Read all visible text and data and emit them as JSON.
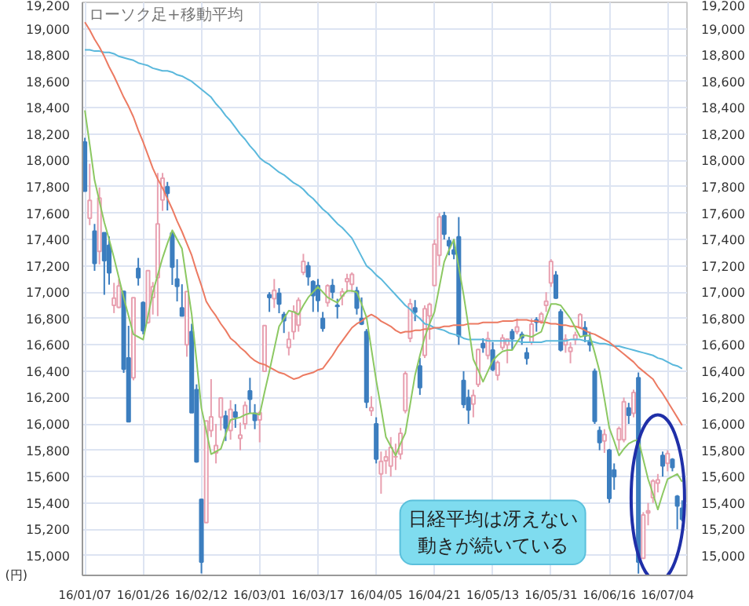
{
  "chart_data": {
    "type": "candlestick",
    "title": "ローソク足+移動平均",
    "ylabel": "(円)",
    "categories": [
      "16/01/07",
      null,
      null,
      null,
      null,
      null,
      null,
      null,
      null,
      null,
      null,
      null,
      "16/01/26",
      null,
      null,
      null,
      null,
      null,
      null,
      null,
      null,
      null,
      null,
      null,
      "16/02/12",
      null,
      null,
      null,
      null,
      null,
      null,
      null,
      null,
      null,
      null,
      null,
      "16/03/01",
      null,
      null,
      null,
      null,
      null,
      null,
      null,
      null,
      null,
      null,
      null,
      "16/03/17",
      null,
      null,
      null,
      null,
      null,
      null,
      null,
      null,
      null,
      null,
      null,
      "16/04/05",
      null,
      null,
      null,
      null,
      null,
      null,
      null,
      null,
      null,
      null,
      null,
      "16/04/21",
      null,
      null,
      null,
      null,
      null,
      null,
      null,
      null,
      null,
      null,
      null,
      "16/05/13",
      null,
      null,
      null,
      null,
      null,
      null,
      null,
      null,
      null,
      null,
      null,
      "16/05/31",
      null,
      null,
      null,
      null,
      null,
      null,
      null,
      null,
      null,
      null,
      null,
      "16/06/16",
      null,
      null,
      null,
      null,
      null,
      null,
      null,
      null,
      null,
      null,
      null,
      "16/07/04",
      null,
      null,
      null
    ],
    "ohlc": [
      [
        18139,
        18172,
        17767,
        17767
      ],
      [
        17562,
        17975,
        17509,
        17697
      ],
      [
        17463,
        17518,
        17162,
        17219
      ],
      [
        17310,
        17795,
        17211,
        17715
      ],
      [
        17451,
        17451,
        16980,
        17240
      ],
      [
        17355,
        17423,
        17057,
        17147
      ],
      [
        16900,
        17071,
        16841,
        16955
      ],
      [
        16885,
        17100,
        16878,
        17048
      ],
      [
        17005,
        17009,
        16387,
        16416
      ],
      [
        16500,
        16745,
        16017,
        16017
      ],
      [
        16350,
        16958,
        16331,
        16958
      ],
      [
        17180,
        17260,
        17050,
        17110
      ],
      [
        16920,
        16930,
        16680,
        16708
      ],
      [
        16770,
        17163,
        16760,
        17163
      ],
      [
        16960,
        17077,
        16830,
        17041
      ],
      [
        17110,
        17905,
        16818,
        17518
      ],
      [
        17700,
        17905,
        17617,
        17865
      ],
      [
        17800,
        17837,
        17620,
        17750
      ],
      [
        17450,
        17450,
        17055,
        17191
      ],
      [
        17100,
        17250,
        16930,
        17044
      ],
      [
        16880,
        17060,
        16819,
        16819
      ],
      [
        16600,
        17004,
        16510,
        17004
      ],
      [
        16700,
        16760,
        16085,
        16085
      ],
      [
        16260,
        16300,
        15706,
        15713
      ],
      [
        15427,
        15430,
        14865,
        14952
      ],
      [
        15250,
        16022,
        15250,
        16022
      ],
      [
        15950,
        16340,
        15900,
        16054
      ],
      [
        15780,
        16000,
        15700,
        15836
      ],
      [
        16050,
        16200,
        15950,
        16196
      ],
      [
        16060,
        16100,
        15870,
        15967
      ],
      [
        15950,
        16180,
        15880,
        16111
      ],
      [
        16090,
        16150,
        15970,
        16052
      ],
      [
        15890,
        16010,
        15800,
        15915
      ],
      [
        16000,
        16170,
        15960,
        16140
      ],
      [
        16250,
        16350,
        16080,
        16188
      ],
      [
        16080,
        16150,
        15960,
        16027
      ],
      [
        16030,
        16100,
        15860,
        16085
      ],
      [
        16400,
        16751,
        16400,
        16747
      ],
      [
        16980,
        17000,
        16850,
        16960
      ],
      [
        16950,
        17100,
        16880,
        17015
      ],
      [
        16990,
        17030,
        16840,
        16911
      ],
      [
        16830,
        16850,
        16690,
        16784
      ],
      [
        16580,
        16700,
        16520,
        16642
      ],
      [
        16700,
        16900,
        16640,
        16852
      ],
      [
        16750,
        16960,
        16700,
        16939
      ],
      [
        17150,
        17291,
        17130,
        17233
      ],
      [
        17200,
        17230,
        17050,
        17117
      ],
      [
        17080,
        17090,
        16850,
        16974
      ],
      [
        17050,
        17100,
        16850,
        16937
      ],
      [
        16800,
        16850,
        16700,
        16725
      ],
      [
        16920,
        17060,
        16890,
        17049
      ],
      [
        17050,
        17100,
        16950,
        17001
      ],
      [
        16900,
        16950,
        16800,
        16893
      ],
      [
        16970,
        17030,
        16900,
        17003
      ],
      [
        17080,
        17140,
        17000,
        17103
      ],
      [
        17060,
        17150,
        17000,
        17135
      ],
      [
        17010,
        17040,
        16830,
        16879
      ],
      [
        16800,
        16960,
        16750,
        16759
      ],
      [
        16700,
        16720,
        16120,
        16165
      ],
      [
        16100,
        16210,
        16060,
        16123
      ],
      [
        16000,
        16050,
        15700,
        15733
      ],
      [
        15620,
        15790,
        15470,
        15716
      ],
      [
        15720,
        15800,
        15620,
        15750
      ],
      [
        15680,
        15900,
        15600,
        15822
      ],
      [
        15750,
        15850,
        15650,
        15752
      ],
      [
        15770,
        15970,
        15730,
        15929
      ],
      [
        16100,
        16400,
        16080,
        16381
      ],
      [
        16650,
        16950,
        16620,
        16912
      ],
      [
        16880,
        16940,
        16780,
        16849
      ],
      [
        16440,
        16500,
        16220,
        16276
      ],
      [
        16520,
        16900,
        16500,
        16874
      ],
      [
        16820,
        16920,
        16640,
        16907
      ],
      [
        17050,
        17400,
        17050,
        17364
      ],
      [
        17280,
        17600,
        17200,
        17572
      ],
      [
        17580,
        17610,
        17400,
        17440
      ],
      [
        17390,
        17420,
        17280,
        17353
      ],
      [
        17320,
        17400,
        17250,
        17290
      ],
      [
        17420,
        17570,
        16600,
        16666
      ],
      [
        16330,
        16400,
        16120,
        16147
      ],
      [
        16200,
        16260,
        16000,
        16106
      ],
      [
        16150,
        16260,
        16050,
        16216
      ],
      [
        16300,
        16570,
        16280,
        16565
      ],
      [
        16610,
        16650,
        16540,
        16579
      ],
      [
        16520,
        16700,
        16490,
        16647
      ],
      [
        16560,
        16620,
        16400,
        16412
      ],
      [
        16370,
        16480,
        16330,
        16466
      ],
      [
        16580,
        16680,
        16560,
        16652
      ],
      [
        16600,
        16650,
        16460,
        16644
      ],
      [
        16700,
        16720,
        16560,
        16646
      ],
      [
        16700,
        16800,
        16680,
        16736
      ],
      [
        16680,
        16700,
        16600,
        16654
      ],
      [
        16540,
        16580,
        16450,
        16498
      ],
      [
        16620,
        16800,
        16600,
        16757
      ],
      [
        16790,
        16810,
        16700,
        16772
      ],
      [
        16780,
        16850,
        16760,
        16834
      ],
      [
        16900,
        17000,
        16850,
        16931
      ],
      [
        17070,
        17250,
        17040,
        17234
      ],
      [
        17130,
        17160,
        16950,
        16955
      ],
      [
        16850,
        16870,
        16550,
        16562
      ],
      [
        16600,
        16680,
        16540,
        16642
      ],
      [
        16550,
        16620,
        16460,
        16580
      ],
      [
        16640,
        16700,
        16600,
        16675
      ],
      [
        16730,
        16840,
        16720,
        16830
      ],
      [
        16730,
        16780,
        16620,
        16668
      ],
      [
        16630,
        16700,
        16550,
        16601
      ],
      [
        16400,
        16420,
        16000,
        16019
      ],
      [
        15950,
        15980,
        15800,
        15859
      ],
      [
        15870,
        15960,
        15780,
        15919
      ],
      [
        15800,
        15810,
        15400,
        15434
      ],
      [
        15650,
        15700,
        15500,
        15599
      ],
      [
        15880,
        15980,
        15800,
        15965
      ],
      [
        15880,
        16200,
        15860,
        16169
      ],
      [
        16120,
        16160,
        16000,
        16065
      ],
      [
        16080,
        16260,
        16050,
        16238
      ],
      [
        16350,
        16390,
        14864,
        14952
      ],
      [
        14980,
        15330,
        14980,
        15309
      ],
      [
        15340,
        15400,
        15230,
        15323
      ],
      [
        15440,
        15580,
        15400,
        15566
      ],
      [
        15550,
        15620,
        15480,
        15575
      ],
      [
        15760,
        15790,
        15600,
        15682
      ],
      [
        15700,
        15800,
        15640,
        15775
      ],
      [
        15730,
        15740,
        15640,
        15669
      ],
      [
        15450,
        15460,
        15200,
        15378
      ],
      [
        15360,
        15420,
        15260,
        15276
      ]
    ],
    "colors": [
      "#3c7ebf",
      "#e8a0b0",
      "#3c7ebf",
      "#e8a0b0",
      "#3c7ebf",
      "#3c7ebf",
      "#e8a0b0",
      "#e8a0b0",
      "#3c7ebf",
      "#3c7ebf",
      "#e8a0b0",
      "#3c7ebf",
      "#3c7ebf",
      "#e8a0b0",
      "#e8a0b0",
      "#e8a0b0",
      "#e8a0b0",
      "#3c7ebf",
      "#3c7ebf",
      "#3c7ebf",
      "#3c7ebf",
      "#e8a0b0",
      "#3c7ebf",
      "#3c7ebf",
      "#3c7ebf",
      "#e8a0b0",
      "#e8a0b0",
      "#e8a0b0",
      "#e8a0b0",
      "#3c7ebf",
      "#e8a0b0",
      "#3c7ebf",
      "#e8a0b0",
      "#e8a0b0",
      "#3c7ebf",
      "#3c7ebf",
      "#e8a0b0",
      "#e8a0b0",
      "#3c7ebf",
      "#e8a0b0",
      "#3c7ebf",
      "#3c7ebf",
      "#e8a0b0",
      "#e8a0b0",
      "#e8a0b0",
      "#e8a0b0",
      "#3c7ebf",
      "#3c7ebf",
      "#3c7ebf",
      "#3c7ebf",
      "#e8a0b0",
      "#3c7ebf",
      "#3c7ebf",
      "#e8a0b0",
      "#e8a0b0",
      "#e8a0b0",
      "#3c7ebf",
      "#3c7ebf",
      "#3c7ebf",
      "#e8a0b0",
      "#3c7ebf",
      "#e8a0b0",
      "#e8a0b0",
      "#e8a0b0",
      "#e8a0b0",
      "#e8a0b0",
      "#e8a0b0",
      "#e8a0b0",
      "#3c7ebf",
      "#3c7ebf",
      "#e8a0b0",
      "#e8a0b0",
      "#e8a0b0",
      "#e8a0b0",
      "#3c7ebf",
      "#3c7ebf",
      "#3c7ebf",
      "#3c7ebf",
      "#3c7ebf",
      "#3c7ebf",
      "#e8a0b0",
      "#e8a0b0",
      "#3c7ebf",
      "#e8a0b0",
      "#3c7ebf",
      "#e8a0b0",
      "#e8a0b0",
      "#e8a0b0",
      "#3c7ebf",
      "#e8a0b0",
      "#3c7ebf",
      "#3c7ebf",
      "#e8a0b0",
      "#3c7ebf",
      "#e8a0b0",
      "#e8a0b0",
      "#e8a0b0",
      "#3c7ebf",
      "#3c7ebf",
      "#e8a0b0",
      "#e8a0b0",
      "#e8a0b0",
      "#e8a0b0",
      "#3c7ebf",
      "#3c7ebf",
      "#3c7ebf",
      "#3c7ebf",
      "#e8a0b0",
      "#3c7ebf",
      "#3c7ebf",
      "#e8a0b0",
      "#e8a0b0",
      "#3c7ebf",
      "#e8a0b0",
      "#3c7ebf",
      "#e8a0b0",
      "#e8a0b0",
      "#e8a0b0",
      "#e8a0b0",
      "#3c7ebf",
      "#e8a0b0",
      "#3c7ebf",
      "#3c7ebf",
      "#3c7ebf"
    ],
    "series": [
      {
        "type": "line",
        "color": "#5ab8dc",
        "values": [
          18840,
          18840,
          18830,
          18830,
          18820,
          18820,
          18810,
          18790,
          18780,
          18770,
          18760,
          18740,
          18730,
          18720,
          18700,
          18690,
          18680,
          18680,
          18670,
          18650,
          18640,
          18620,
          18600,
          18570,
          18540,
          18510,
          18480,
          18430,
          18390,
          18340,
          18300,
          18250,
          18200,
          18160,
          18110,
          18070,
          18020,
          17990,
          17970,
          17940,
          17910,
          17890,
          17860,
          17830,
          17810,
          17780,
          17740,
          17710,
          17670,
          17630,
          17600,
          17560,
          17520,
          17490,
          17450,
          17410,
          17340,
          17270,
          17200,
          17170,
          17130,
          17100,
          17060,
          17020,
          16980,
          16940,
          16900,
          16870,
          16830,
          16800,
          16760,
          16750,
          16730,
          16720,
          16710,
          16690,
          16680,
          16670,
          16650,
          16640,
          16640,
          16640,
          16640,
          16630,
          16630,
          16630,
          16630,
          16630,
          16630,
          16630,
          16620,
          16620,
          16620,
          16620,
          16620,
          16630,
          16630,
          16630,
          16630,
          16630,
          16640,
          16640,
          16640,
          16630,
          16630,
          16620,
          16610,
          16610,
          16600,
          16590,
          16590,
          16580,
          16570,
          16560,
          16550,
          16540,
          16530,
          16520,
          16500,
          16490,
          16470,
          16450,
          16440,
          16420
        ]
      },
      {
        "type": "line",
        "color": "#ec7a62",
        "values": [
          19050,
          18990,
          18920,
          18860,
          18790,
          18710,
          18640,
          18560,
          18480,
          18410,
          18330,
          18230,
          18140,
          18040,
          17940,
          17860,
          17790,
          17710,
          17630,
          17540,
          17460,
          17370,
          17280,
          17160,
          17050,
          16930,
          16870,
          16820,
          16760,
          16710,
          16650,
          16620,
          16580,
          16550,
          16510,
          16480,
          16460,
          16450,
          16430,
          16410,
          16390,
          16380,
          16360,
          16340,
          16350,
          16370,
          16380,
          16390,
          16410,
          16420,
          16470,
          16520,
          16580,
          16630,
          16680,
          16730,
          16760,
          16780,
          16810,
          16830,
          16810,
          16780,
          16760,
          16740,
          16710,
          16690,
          16700,
          16700,
          16710,
          16710,
          16720,
          16720,
          16730,
          16730,
          16740,
          16740,
          16750,
          16750,
          16750,
          16760,
          16760,
          16760,
          16770,
          16770,
          16770,
          16770,
          16780,
          16780,
          16780,
          16790,
          16790,
          16790,
          16780,
          16780,
          16770,
          16770,
          16760,
          16760,
          16750,
          16750,
          16740,
          16740,
          16730,
          16710,
          16690,
          16680,
          16660,
          16640,
          16620,
          16590,
          16560,
          16530,
          16500,
          16470,
          16430,
          16400,
          16370,
          16340,
          16280,
          16230,
          16170,
          16110,
          16050,
          15990
        ]
      },
      {
        "type": "line",
        "color": "#8cc862",
        "values": [
          18380,
          18120,
          17850,
          17690,
          17530,
          17400,
          17260,
          17110,
          16960,
          16820,
          16680,
          16660,
          16640,
          16820,
          17000,
          17130,
          17260,
          17370,
          17470,
          17400,
          17330,
          17080,
          16830,
          16480,
          16120,
          15950,
          15770,
          15790,
          15810,
          15920,
          16030,
          16040,
          16050,
          16070,
          16080,
          16080,
          16070,
          16240,
          16400,
          16570,
          16740,
          16800,
          16860,
          16850,
          16830,
          16900,
          16960,
          17000,
          17040,
          17000,
          16960,
          16940,
          16920,
          16970,
          17010,
          17010,
          17000,
          16910,
          16810,
          16570,
          16330,
          16120,
          15900,
          15830,
          15760,
          15850,
          15930,
          16150,
          16370,
          16520,
          16660,
          16760,
          16850,
          17040,
          17230,
          17320,
          17400,
          17190,
          16980,
          16740,
          16490,
          16410,
          16320,
          16400,
          16480,
          16520,
          16550,
          16560,
          16560,
          16620,
          16670,
          16670,
          16660,
          16680,
          16700,
          16810,
          16910,
          16910,
          16900,
          16850,
          16800,
          16730,
          16660,
          16670,
          16670,
          16540,
          16400,
          16190,
          15970,
          15870,
          15760,
          15810,
          15850,
          15870,
          15880,
          15730,
          15580,
          15470,
          15350,
          15470,
          15580,
          15600,
          15620,
          15560
        ]
      }
    ],
    "ylim": [
      14850,
      19200
    ],
    "yticks": [
      {
        "value": 15000,
        "label": "15,000"
      },
      {
        "value": 15200,
        "label": "15,200"
      },
      {
        "value": 15400,
        "label": "15,400"
      },
      {
        "value": 15600,
        "label": "15,600"
      },
      {
        "value": 15800,
        "label": "15,800"
      },
      {
        "value": 16000,
        "label": "16,000"
      },
      {
        "value": 16200,
        "label": "16,200"
      },
      {
        "value": 16400,
        "label": "16,400"
      },
      {
        "value": 16600,
        "label": "16,600"
      },
      {
        "value": 16800,
        "label": "16,800"
      },
      {
        "value": 17000,
        "label": "17,000"
      },
      {
        "value": 17200,
        "label": "17,200"
      },
      {
        "value": 17400,
        "label": "17,400"
      },
      {
        "value": 17600,
        "label": "17,600"
      },
      {
        "value": 17800,
        "label": "17,800"
      },
      {
        "value": 18000,
        "label": "18,000"
      },
      {
        "value": 18200,
        "label": "18,200"
      },
      {
        "value": 18400,
        "label": "18,400"
      },
      {
        "value": 18600,
        "label": "18,600"
      },
      {
        "value": 18800,
        "label": "18,800"
      },
      {
        "value": 19000,
        "label": "19,000"
      },
      {
        "value": 19200,
        "label": "19,200"
      }
    ],
    "y2lim": [
      14850,
      19200
    ],
    "y2ticks": [
      {
        "value": 15000,
        "label": "15,000"
      },
      {
        "value": 15200,
        "label": "15,200"
      },
      {
        "value": 15400,
        "label": "15,400"
      },
      {
        "value": 15600,
        "label": "15,600"
      },
      {
        "value": 15800,
        "label": "15,800"
      },
      {
        "value": 16000,
        "label": "16,000"
      },
      {
        "value": 16200,
        "label": "16,200"
      },
      {
        "value": 16400,
        "label": "16,400"
      },
      {
        "value": 16600,
        "label": "16,600"
      },
      {
        "value": 16800,
        "label": "16,800"
      },
      {
        "value": 17000,
        "label": "17,000"
      },
      {
        "value": 17200,
        "label": "17,200"
      },
      {
        "value": 17400,
        "label": "17,400"
      },
      {
        "value": 17600,
        "label": "17,600"
      },
      {
        "value": 17800,
        "label": "17,800"
      },
      {
        "value": 18000,
        "label": "18,000"
      },
      {
        "value": 18200,
        "label": "18,200"
      },
      {
        "value": 18400,
        "label": "18,400"
      },
      {
        "value": 18600,
        "label": "18,600"
      },
      {
        "value": 18800,
        "label": "18,800"
      },
      {
        "value": 19000,
        "label": "19,000"
      },
      {
        "value": 19200,
        "label": "19,200"
      }
    ],
    "grid": true,
    "annotations": [
      "日経平均は冴えない動きが続いている"
    ]
  }
}
